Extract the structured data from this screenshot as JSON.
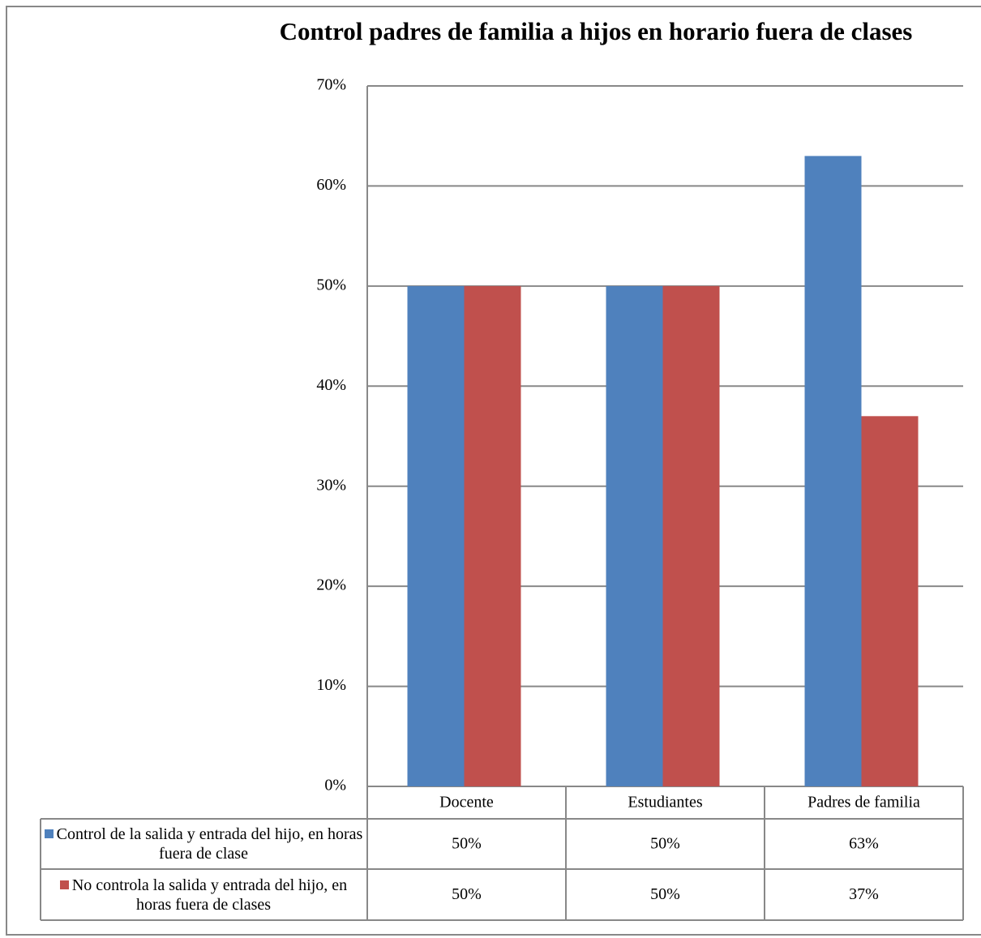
{
  "chart_data": {
    "type": "bar",
    "title": "Control padres de familia  a hijos en horario fuera de clases",
    "categories": [
      "Docente",
      "Estudiantes",
      "Padres de familia"
    ],
    "series": [
      {
        "name": "Control de la salida y entrada del hijo, en horas fuera de clase",
        "color": "#4f81bd",
        "values": [
          50,
          50,
          63
        ],
        "value_labels": [
          "50%",
          "50%",
          "63%"
        ]
      },
      {
        "name": "No controla la salida y entrada del hijo, en horas fuera de clases",
        "color": "#c0504d",
        "values": [
          50,
          50,
          37
        ],
        "value_labels": [
          "50%",
          "50%",
          "37%"
        ]
      }
    ],
    "ylim": [
      0,
      70
    ],
    "yticks": [
      {
        "value": 0,
        "label": "0%"
      },
      {
        "value": 10,
        "label": "10%"
      },
      {
        "value": 20,
        "label": "20%"
      },
      {
        "value": 30,
        "label": "30%"
      },
      {
        "value": 40,
        "label": "40%"
      },
      {
        "value": 50,
        "label": "50%"
      },
      {
        "value": 60,
        "label": "60%"
      },
      {
        "value": 70,
        "label": "70%"
      }
    ],
    "grid": true
  }
}
